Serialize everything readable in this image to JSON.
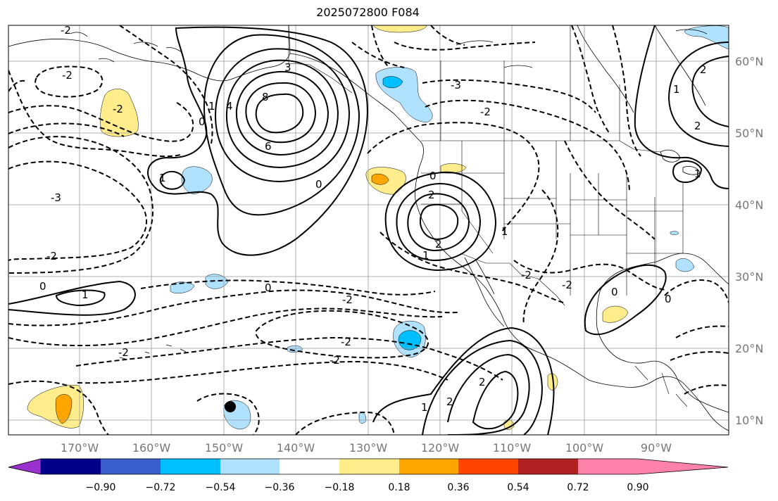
{
  "title": "2025072800 F084",
  "longitude_labels": [
    "170°W",
    "160°W",
    "150°W",
    "140°W",
    "130°W",
    "120°W",
    "110°W",
    "100°W",
    "90°W"
  ],
  "latitude_labels": [
    "60°N",
    "50°N",
    "40°N",
    "30°N",
    "20°N",
    "10°N"
  ],
  "colorbar": {
    "ticks": [
      "−0.90",
      "−0.72",
      "−0.54",
      "−0.36",
      "−0.18",
      "0.18",
      "0.36",
      "0.54",
      "0.72",
      "0.90"
    ],
    "colors": [
      "#9932cc",
      "#00008b",
      "#3a5fcd",
      "#00bfff",
      "#b0e2ff",
      "#ffffff",
      "#ffec8b",
      "#ffa500",
      "#ff4500",
      "#b22222",
      "#ff82ab"
    ]
  },
  "contour_labels": {
    "p_8": "8",
    "p_6": "6",
    "p_4": "4",
    "p_3": "3",
    "p_1a": "1",
    "p_1b": "1",
    "z_nw": "0",
    "z_c": "0",
    "z_w": "0",
    "z_s": "0",
    "z_ne": "0",
    "z_gulf": "0",
    "z_e": "0",
    "n_2a": "-2",
    "n_2b": "-2",
    "n_3a": "-3",
    "n_3b": "-3",
    "n_2c": "-2",
    "n_2d": "-2",
    "n_2e": "-2",
    "n_2f": "-2",
    "n_2g": "-2",
    "n_2h": "-2",
    "n_2i": "-2",
    "n_2j": "-2",
    "n_2k": "-2",
    "p_2ca": "2",
    "p_2cb": "2",
    "p_1c": "1",
    "p_1d": "1",
    "p_2sa": "2",
    "p_2sb": "2",
    "p_1s": "1",
    "p_2ne": "2",
    "p_2ne2": "2",
    "p_1ne": "1",
    "p_1w": "1",
    "p_1w2": "1"
  }
}
